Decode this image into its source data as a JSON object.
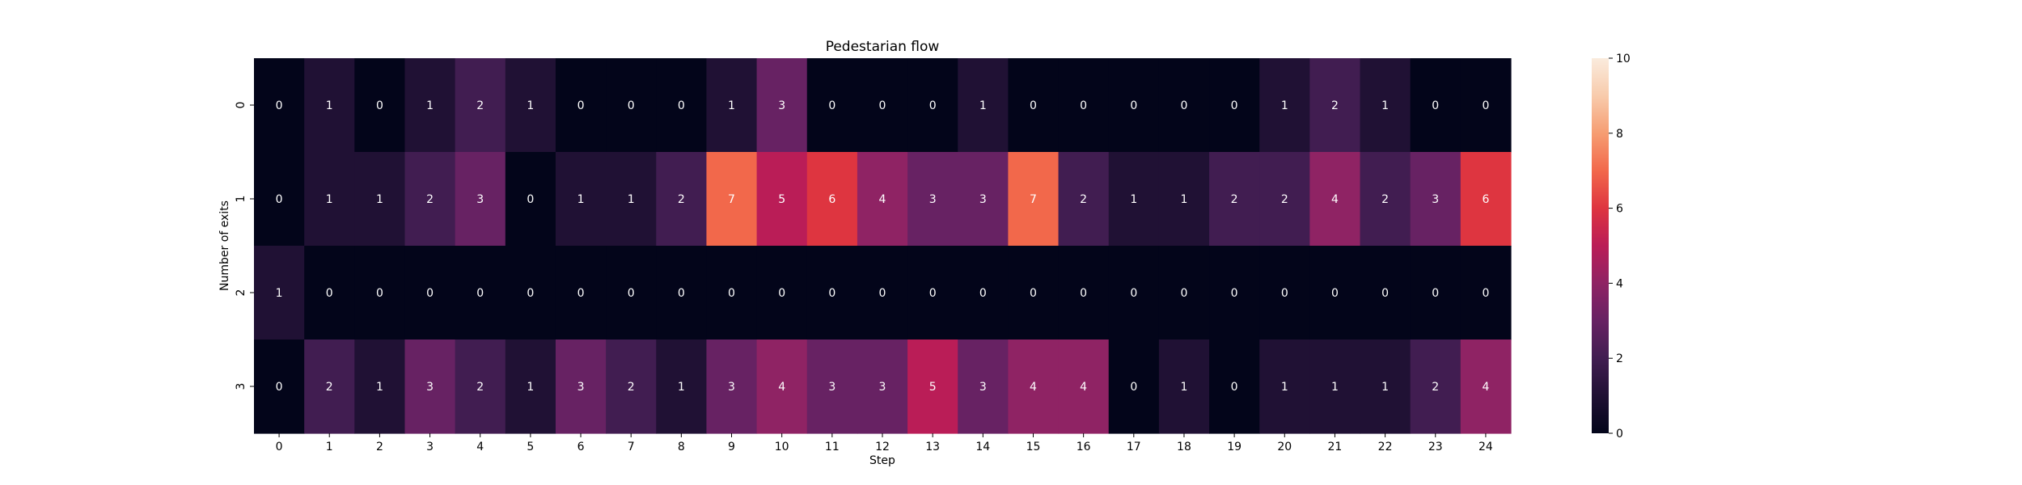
{
  "chart_data": {
    "type": "heatmap",
    "title": "Pedestarian flow",
    "xlabel": "Step",
    "ylabel": "Number of exits",
    "x_categories": [
      "0",
      "1",
      "2",
      "3",
      "4",
      "5",
      "6",
      "7",
      "8",
      "9",
      "10",
      "11",
      "12",
      "13",
      "14",
      "15",
      "16",
      "17",
      "18",
      "19",
      "20",
      "21",
      "22",
      "23",
      "24"
    ],
    "y_categories": [
      "0",
      "1",
      "2",
      "3"
    ],
    "values": [
      [
        0,
        1,
        0,
        1,
        2,
        1,
        0,
        0,
        0,
        1,
        3,
        0,
        0,
        0,
        1,
        0,
        0,
        0,
        0,
        0,
        1,
        2,
        1,
        0,
        0
      ],
      [
        0,
        1,
        1,
        2,
        3,
        0,
        1,
        1,
        2,
        7,
        5,
        6,
        4,
        3,
        3,
        7,
        2,
        1,
        1,
        2,
        2,
        4,
        2,
        3,
        6
      ],
      [
        1,
        0,
        0,
        0,
        0,
        0,
        0,
        0,
        0,
        0,
        0,
        0,
        0,
        0,
        0,
        0,
        0,
        0,
        0,
        0,
        0,
        0,
        0,
        0,
        0
      ],
      [
        0,
        2,
        1,
        3,
        2,
        1,
        3,
        2,
        1,
        3,
        4,
        3,
        3,
        5,
        3,
        4,
        4,
        0,
        1,
        0,
        1,
        1,
        1,
        2,
        4
      ]
    ],
    "colorbar": {
      "range": [
        0,
        10
      ],
      "ticks": [
        "0",
        "2",
        "4",
        "6",
        "8",
        "10"
      ]
    },
    "colormap": "rocket",
    "grid": false,
    "legend": "colorbar-right"
  }
}
